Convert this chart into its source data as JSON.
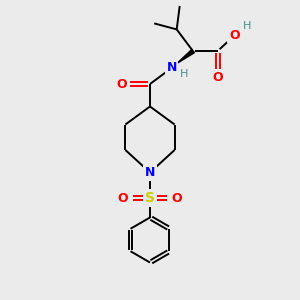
{
  "bg_color": "#ebebeb",
  "bond_color": "#000000",
  "colors": {
    "O": "#ff0000",
    "N": "#0000ff",
    "S": "#cccc00",
    "H": "#4a9090",
    "C": "#000000"
  },
  "figsize": [
    3.0,
    3.0
  ],
  "dpi": 100,
  "lw": 1.4,
  "fontsize": 9
}
